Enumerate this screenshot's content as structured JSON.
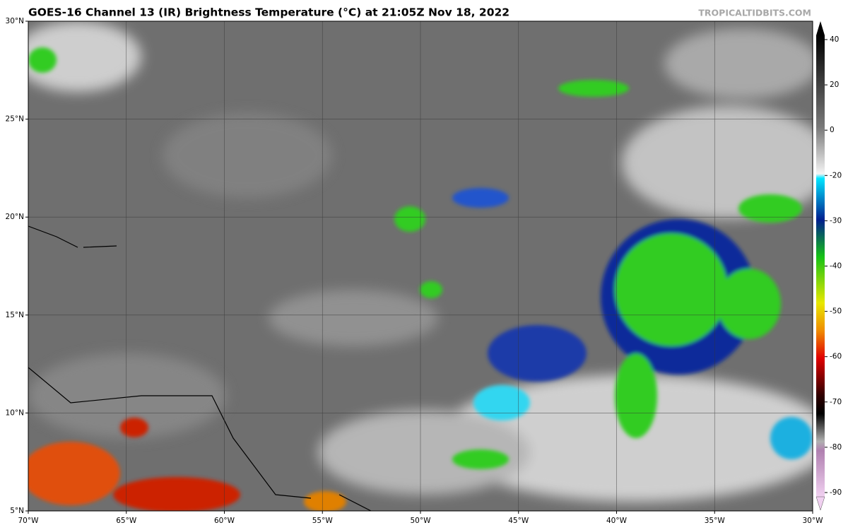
{
  "header": {
    "title": "GOES-16 Channel 13 (IR) Brightness Temperature (°C) at 21:05Z Nov 18, 2022",
    "source": "TROPICALTIDBITS.COM"
  },
  "map": {
    "lat_labels": [
      "30°N",
      "25°N",
      "20°N",
      "15°N",
      "10°N",
      "5°N"
    ],
    "lon_labels": [
      "70°W",
      "65°W",
      "60°W",
      "55°W",
      "50°W",
      "45°W",
      "40°W",
      "35°W",
      "30°W"
    ]
  },
  "colorbar": {
    "ticks": [
      40,
      20,
      0,
      -20,
      -30,
      -40,
      -50,
      -60,
      -70,
      -80,
      -90
    ]
  }
}
